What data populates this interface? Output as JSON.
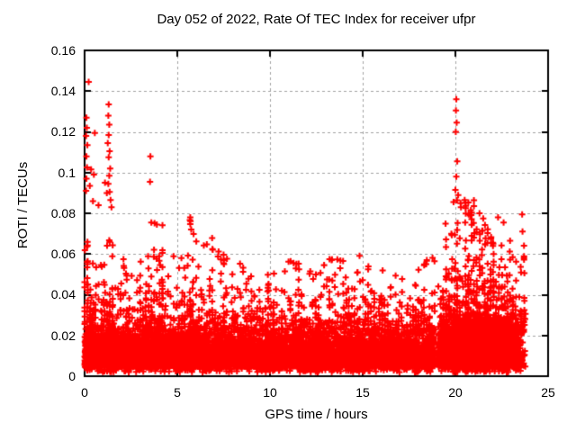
{
  "chart_data": {
    "type": "scatter",
    "title": "Day 052 of 2022, Rate Of TEC Index for receiver ufpr",
    "xlabel": "GPS time / hours",
    "ylabel": "ROTI / TECUs",
    "xlim": [
      0,
      25
    ],
    "ylim": [
      0,
      0.16
    ],
    "xticks": [
      0,
      5,
      10,
      15,
      20,
      25
    ],
    "yticks": [
      0,
      0.02,
      0.04,
      0.06,
      0.08,
      0.1,
      0.12,
      0.14,
      0.16
    ],
    "xtick_labels": [
      "0",
      "5",
      "10",
      "15",
      "20",
      "25"
    ],
    "ytick_labels": [
      "0",
      "0.02",
      "0.04",
      "0.06",
      "0.08",
      "0.1",
      "0.12",
      "0.14",
      "0.16"
    ],
    "grid": "dashed-both-axes",
    "legend": "none",
    "marker": "plus",
    "marker_size_px": 7,
    "colors": {
      "marker": "#ff0000",
      "axis": "#000000",
      "grid": "#a0a0a0",
      "background": "#ffffff",
      "text": "#000000"
    },
    "seed": 52,
    "data_gaps_hours": [
      [
        18.88,
        19.08
      ],
      [
        23.78,
        25
      ]
    ],
    "envelope": [
      {
        "t0": 0,
        "t1": 0.5,
        "n": 350,
        "band_sigma": 0.009,
        "spike_max": 0.068,
        "spike_frac": 0.13
      },
      {
        "t0": 0.5,
        "t1": 1,
        "n": 300,
        "band_sigma": 0.008,
        "spike_max": 0.058,
        "spike_frac": 0.1
      },
      {
        "t0": 1,
        "t1": 1.6,
        "n": 350,
        "band_sigma": 0.009,
        "spike_max": 0.075,
        "spike_frac": 0.13
      },
      {
        "t0": 1.6,
        "t1": 2.2,
        "n": 300,
        "band_sigma": 0.008,
        "spike_max": 0.06,
        "spike_frac": 0.1
      },
      {
        "t0": 2.2,
        "t1": 3,
        "n": 380,
        "band_sigma": 0.008,
        "spike_max": 0.055,
        "spike_frac": 0.1
      },
      {
        "t0": 3,
        "t1": 3.6,
        "n": 300,
        "band_sigma": 0.008,
        "spike_max": 0.065,
        "spike_frac": 0.1
      },
      {
        "t0": 3.6,
        "t1": 4.2,
        "n": 320,
        "band_sigma": 0.009,
        "spike_max": 0.082,
        "spike_frac": 0.12
      },
      {
        "t0": 4.2,
        "t1": 5,
        "n": 400,
        "band_sigma": 0.008,
        "spike_max": 0.062,
        "spike_frac": 0.1
      },
      {
        "t0": 5,
        "t1": 5.6,
        "n": 300,
        "band_sigma": 0.008,
        "spike_max": 0.06,
        "spike_frac": 0.1
      },
      {
        "t0": 5.6,
        "t1": 6.2,
        "n": 320,
        "band_sigma": 0.009,
        "spike_max": 0.078,
        "spike_frac": 0.12
      },
      {
        "t0": 6.2,
        "t1": 7,
        "n": 400,
        "band_sigma": 0.008,
        "spike_max": 0.068,
        "spike_frac": 0.1
      },
      {
        "t0": 7,
        "t1": 8,
        "n": 500,
        "band_sigma": 0.008,
        "spike_max": 0.062,
        "spike_frac": 0.1
      },
      {
        "t0": 8,
        "t1": 9,
        "n": 500,
        "band_sigma": 0.0075,
        "spike_max": 0.058,
        "spike_frac": 0.09
      },
      {
        "t0": 9,
        "t1": 10,
        "n": 500,
        "band_sigma": 0.007,
        "spike_max": 0.05,
        "spike_frac": 0.09
      },
      {
        "t0": 10,
        "t1": 11,
        "n": 500,
        "band_sigma": 0.007,
        "spike_max": 0.052,
        "spike_frac": 0.09
      },
      {
        "t0": 11,
        "t1": 12,
        "n": 500,
        "band_sigma": 0.0075,
        "spike_max": 0.058,
        "spike_frac": 0.1
      },
      {
        "t0": 12,
        "t1": 13,
        "n": 500,
        "band_sigma": 0.0075,
        "spike_max": 0.056,
        "spike_frac": 0.1
      },
      {
        "t0": 13,
        "t1": 14,
        "n": 500,
        "band_sigma": 0.0075,
        "spike_max": 0.058,
        "spike_frac": 0.1
      },
      {
        "t0": 14,
        "t1": 15,
        "n": 500,
        "band_sigma": 0.008,
        "spike_max": 0.06,
        "spike_frac": 0.1
      },
      {
        "t0": 15,
        "t1": 16,
        "n": 500,
        "band_sigma": 0.008,
        "spike_max": 0.063,
        "spike_frac": 0.1
      },
      {
        "t0": 16,
        "t1": 17,
        "n": 500,
        "band_sigma": 0.0075,
        "spike_max": 0.054,
        "spike_frac": 0.09
      },
      {
        "t0": 17,
        "t1": 18,
        "n": 480,
        "band_sigma": 0.0075,
        "spike_max": 0.05,
        "spike_frac": 0.09
      },
      {
        "t0": 18,
        "t1": 18.88,
        "n": 420,
        "band_sigma": 0.008,
        "spike_max": 0.06,
        "spike_frac": 0.11
      },
      {
        "t0": 19.08,
        "t1": 19.35,
        "n": 160,
        "band_sigma": 0.009,
        "spike_max": 0.055,
        "spike_frac": 0.1
      },
      {
        "t0": 19.35,
        "t1": 20,
        "n": 560,
        "band_sigma": 0.01,
        "spike_max": 0.075,
        "spike_frac": 0.14
      },
      {
        "t0": 20,
        "t1": 21,
        "n": 900,
        "band_sigma": 0.011,
        "spike_max": 0.088,
        "spike_frac": 0.15
      },
      {
        "t0": 21,
        "t1": 22,
        "n": 900,
        "band_sigma": 0.01,
        "spike_max": 0.075,
        "spike_frac": 0.14
      },
      {
        "t0": 22,
        "t1": 23,
        "n": 800,
        "band_sigma": 0.01,
        "spike_max": 0.068,
        "spike_frac": 0.13
      },
      {
        "t0": 23,
        "t1": 23.4,
        "n": 280,
        "band_sigma": 0.009,
        "spike_max": 0.06,
        "spike_frac": 0.12
      },
      {
        "t0": 23.45,
        "t1": 23.78,
        "n": 70,
        "band_sigma": 0.015,
        "spike_max": 0.065,
        "spike_frac": 0.3
      }
    ],
    "outliers": [
      [
        0.22,
        0.1445
      ],
      [
        0.1,
        0.127
      ],
      [
        0.12,
        0.122
      ],
      [
        0.08,
        0.118
      ],
      [
        0.15,
        0.1135
      ],
      [
        0.1,
        0.108
      ],
      [
        0.13,
        0.1025
      ],
      [
        0.35,
        0.1015
      ],
      [
        0.1,
        0.097
      ],
      [
        0.28,
        0.0935
      ],
      [
        0.08,
        0.091
      ],
      [
        0.55,
        0.1195
      ],
      [
        0.5,
        0.099
      ],
      [
        0.45,
        0.086
      ],
      [
        0.75,
        0.084
      ],
      [
        1.3,
        0.1335
      ],
      [
        1.28,
        0.128
      ],
      [
        1.33,
        0.1235
      ],
      [
        1.3,
        0.1185
      ],
      [
        1.25,
        0.1145
      ],
      [
        1.35,
        0.1105
      ],
      [
        1.3,
        0.1075
      ],
      [
        1.38,
        0.102
      ],
      [
        1.33,
        0.0985
      ],
      [
        1.28,
        0.0945
      ],
      [
        1.35,
        0.0905
      ],
      [
        1.4,
        0.0865
      ],
      [
        1.45,
        0.083
      ],
      [
        1.2,
        0.09
      ],
      [
        1.1,
        0.095
      ],
      [
        3.55,
        0.108
      ],
      [
        3.53,
        0.0955
      ],
      [
        5.7,
        0.078
      ],
      [
        5.75,
        0.072
      ],
      [
        20.05,
        0.136
      ],
      [
        20.03,
        0.1305
      ],
      [
        20.07,
        0.1245
      ],
      [
        20.02,
        0.12
      ],
      [
        20.1,
        0.1055
      ],
      [
        20.05,
        0.098
      ],
      [
        20.0,
        0.0915
      ],
      [
        20.15,
        0.089
      ],
      [
        19.9,
        0.0855
      ],
      [
        20.3,
        0.083
      ],
      [
        20.5,
        0.0865
      ],
      [
        20.55,
        0.0825
      ],
      [
        21.0,
        0.0835
      ],
      [
        21.3,
        0.08
      ],
      [
        20.8,
        0.079
      ],
      [
        21.5,
        0.0775
      ],
      [
        22.3,
        0.078
      ],
      [
        22.6,
        0.0755
      ],
      [
        23.6,
        0.0795
      ],
      [
        23.62,
        0.071
      ]
    ]
  }
}
